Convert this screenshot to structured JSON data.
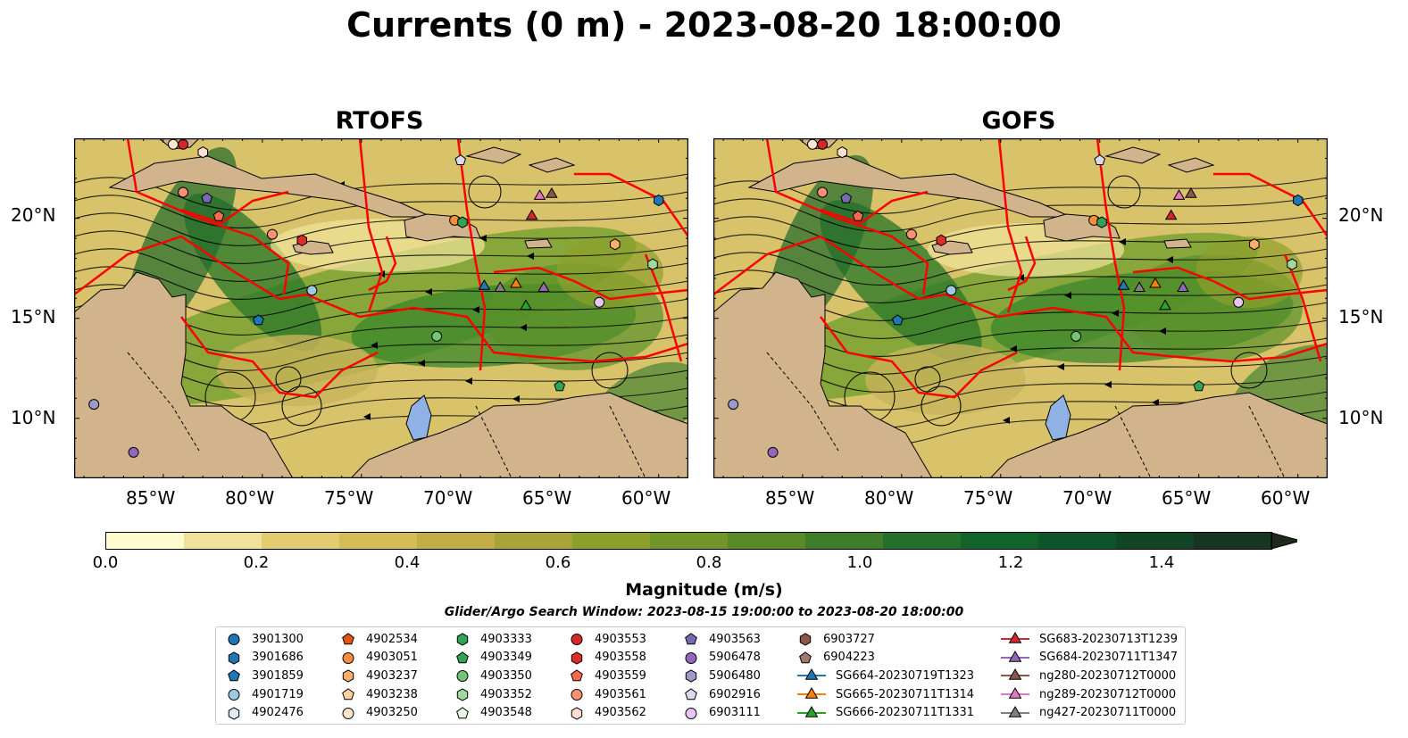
{
  "title": "Currents (0 m) - 2023-08-20 18:00:00",
  "panels": [
    {
      "id": "rtofs",
      "title": "RTOFS"
    },
    {
      "id": "gofs",
      "title": "GOFS"
    }
  ],
  "axes": {
    "lon_ticks": [
      "85°W",
      "80°W",
      "75°W",
      "70°W",
      "65°W",
      "60°W"
    ],
    "lat_ticks": [
      "20°N",
      "15°N",
      "10°N"
    ]
  },
  "colorbar": {
    "label": "Magnitude (m/s)",
    "ticks": [
      "0.0",
      "0.2",
      "0.4",
      "0.6",
      "0.8",
      "1.0",
      "1.2",
      "1.4"
    ],
    "min": 0.0,
    "max": 1.5,
    "extend": "max",
    "colors": [
      "#fefbcf",
      "#f0e29a",
      "#e2cc72",
      "#d4bd57",
      "#c3ad47",
      "#a8a43a",
      "#8ea02c",
      "#72962a",
      "#5a8a28",
      "#3f7d2a",
      "#23702d",
      "#11632c",
      "#0b5529",
      "#124525",
      "#173621",
      "#1c2b1a"
    ]
  },
  "search_window": "Glider/Argo Search Window: 2023-08-15 19:00:00 to 2023-08-20 18:00:00",
  "legend": {
    "columns": [
      [
        {
          "label": "3901300",
          "shape": "circle",
          "color": "#1f77b4"
        },
        {
          "label": "3901686",
          "shape": "hexagon",
          "color": "#1f77b4"
        },
        {
          "label": "3901859",
          "shape": "pentagon",
          "color": "#1f77b4"
        },
        {
          "label": "4901719",
          "shape": "circle",
          "color": "#9ecae1"
        },
        {
          "label": "4902476",
          "shape": "hexagon",
          "color": "#deebf7"
        }
      ],
      [
        {
          "label": "4902534",
          "shape": "pentagon",
          "color": "#e6550d"
        },
        {
          "label": "4903051",
          "shape": "circle",
          "color": "#fd8d3c"
        },
        {
          "label": "4903237",
          "shape": "hexagon",
          "color": "#fdae6b"
        },
        {
          "label": "4903238",
          "shape": "pentagon",
          "color": "#fdd0a2"
        },
        {
          "label": "4903250",
          "shape": "circle",
          "color": "#fee6ce"
        }
      ],
      [
        {
          "label": "4903333",
          "shape": "hexagon",
          "color": "#31a354"
        },
        {
          "label": "4903349",
          "shape": "pentagon",
          "color": "#31a354"
        },
        {
          "label": "4903350",
          "shape": "circle",
          "color": "#74c476"
        },
        {
          "label": "4903352",
          "shape": "hexagon",
          "color": "#a1d99b"
        },
        {
          "label": "4903548",
          "shape": "pentagon",
          "color": "#e5f5e0"
        }
      ],
      [
        {
          "label": "4903553",
          "shape": "circle",
          "color": "#d62728"
        },
        {
          "label": "4903558",
          "shape": "hexagon",
          "color": "#de2d26"
        },
        {
          "label": "4903559",
          "shape": "pentagon",
          "color": "#fb6a4a"
        },
        {
          "label": "4903561",
          "shape": "circle",
          "color": "#fc9272"
        },
        {
          "label": "4903562",
          "shape": "hexagon",
          "color": "#fee0d2"
        }
      ],
      [
        {
          "label": "4903563",
          "shape": "pentagon",
          "color": "#756bb1"
        },
        {
          "label": "5906478",
          "shape": "circle",
          "color": "#9467bd"
        },
        {
          "label": "5906480",
          "shape": "hexagon",
          "color": "#9e9ac8"
        },
        {
          "label": "6902916",
          "shape": "pentagon",
          "color": "#dadaeb"
        },
        {
          "label": "6903111",
          "shape": "circle",
          "color": "#e7c6f5"
        }
      ],
      [
        {
          "label": "6903727",
          "shape": "hexagon",
          "color": "#8c564b"
        },
        {
          "label": "6904223",
          "shape": "pentagon",
          "color": "#a0786e"
        },
        {
          "label": "SG664-20230719T1323",
          "shape": "triangle",
          "color": "#1f77b4"
        },
        {
          "label": "SG665-20230711T1314",
          "shape": "triangle",
          "color": "#ff7f0e"
        },
        {
          "label": "SG666-20230711T1331",
          "shape": "triangle",
          "color": "#2ca02c"
        }
      ],
      [
        {
          "label": "SG683-20230713T1239",
          "shape": "triangle",
          "color": "#d62728"
        },
        {
          "label": "SG684-20230711T1347",
          "shape": "triangle",
          "color": "#9467bd"
        },
        {
          "label": "ng280-20230712T0000",
          "shape": "triangle",
          "color": "#8c564b"
        },
        {
          "label": "ng289-20230712T0000",
          "shape": "triangle",
          "color": "#e377c2"
        },
        {
          "label": "ng427-20230711T0000",
          "shape": "triangle",
          "color": "#7f7f7f"
        }
      ]
    ]
  },
  "map_markers": [
    {
      "lon": -84.5,
      "lat": 23.7,
      "shape": "circle",
      "color": "#fee6ce"
    },
    {
      "lon": -84.0,
      "lat": 23.7,
      "shape": "circle",
      "color": "#d62728"
    },
    {
      "lon": -83.0,
      "lat": 23.3,
      "shape": "hexagon",
      "color": "#fee0d2"
    },
    {
      "lon": -84.0,
      "lat": 21.3,
      "shape": "circle",
      "color": "#fc9272"
    },
    {
      "lon": -82.8,
      "lat": 21.0,
      "shape": "pentagon",
      "color": "#756bb1"
    },
    {
      "lon": -82.2,
      "lat": 20.1,
      "shape": "pentagon",
      "color": "#fb6a4a"
    },
    {
      "lon": -79.5,
      "lat": 19.2,
      "shape": "circle",
      "color": "#fc9272"
    },
    {
      "lon": -78.0,
      "lat": 18.9,
      "shape": "hexagon",
      "color": "#de2d26"
    },
    {
      "lon": -77.5,
      "lat": 16.4,
      "shape": "circle",
      "color": "#9ecae1"
    },
    {
      "lon": -80.2,
      "lat": 14.9,
      "shape": "pentagon",
      "color": "#1f77b4"
    },
    {
      "lon": -88.5,
      "lat": 10.7,
      "shape": "circle",
      "color": "#9e9ac8"
    },
    {
      "lon": -86.5,
      "lat": 8.3,
      "shape": "circle",
      "color": "#9467bd"
    },
    {
      "lon": -70.0,
      "lat": 22.9,
      "shape": "pentagon",
      "color": "#dadaeb"
    },
    {
      "lon": -70.3,
      "lat": 19.9,
      "shape": "circle",
      "color": "#fd8d3c"
    },
    {
      "lon": -69.9,
      "lat": 19.8,
      "shape": "hexagon",
      "color": "#31a354"
    },
    {
      "lon": -71.2,
      "lat": 14.1,
      "shape": "circle",
      "color": "#74c476"
    },
    {
      "lon": -65.0,
      "lat": 11.6,
      "shape": "pentagon",
      "color": "#31a354"
    },
    {
      "lon": -60.0,
      "lat": 20.9,
      "shape": "hexagon",
      "color": "#1f77b4"
    },
    {
      "lon": -62.2,
      "lat": 18.7,
      "shape": "hexagon",
      "color": "#fdae6b"
    },
    {
      "lon": -60.3,
      "lat": 17.7,
      "shape": "hexagon",
      "color": "#a1d99b"
    },
    {
      "lon": -63.0,
      "lat": 15.8,
      "shape": "circle",
      "color": "#e7c6f5"
    },
    {
      "lon": -66.0,
      "lat": 21.1,
      "shape": "triangle",
      "color": "#e377c2"
    },
    {
      "lon": -65.4,
      "lat": 21.2,
      "shape": "triangle",
      "color": "#8c564b"
    },
    {
      "lon": -66.4,
      "lat": 20.1,
      "shape": "triangle",
      "color": "#d62728"
    },
    {
      "lon": -68.8,
      "lat": 16.6,
      "shape": "triangle",
      "color": "#1f77b4"
    },
    {
      "lon": -68.0,
      "lat": 16.5,
      "shape": "triangle",
      "color": "#7f7f7f"
    },
    {
      "lon": -67.2,
      "lat": 16.7,
      "shape": "triangle",
      "color": "#ff7f0e"
    },
    {
      "lon": -66.7,
      "lat": 15.6,
      "shape": "triangle",
      "color": "#2ca02c"
    },
    {
      "lon": -65.8,
      "lat": 16.5,
      "shape": "triangle",
      "color": "#9467bd"
    }
  ],
  "extent": {
    "lon_min": -89.5,
    "lon_max": -58.5,
    "lat_min": 7.0,
    "lat_max": 24.0
  },
  "colors": {
    "land": "#d2b48c",
    "boundary": "#ff0000",
    "lake": "#8fb1e3",
    "streamline": "#000000"
  }
}
